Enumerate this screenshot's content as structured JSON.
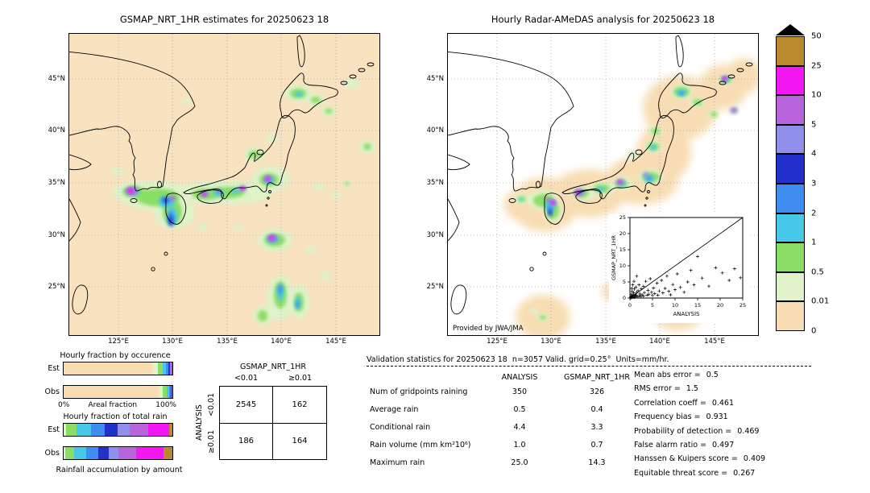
{
  "chart_data": [
    {
      "type": "heatmap",
      "title": "GSMAP_NRT_1HR estimates for 20250623 18",
      "lat_ticks": [
        "45°N",
        "40°N",
        "35°N",
        "30°N",
        "25°N"
      ],
      "lon_ticks": [
        "125°E",
        "130°E",
        "135°E",
        "140°E",
        "145°E"
      ],
      "units": "mm/hr"
    },
    {
      "type": "heatmap",
      "title": "Hourly Radar-AMeDAS analysis for 20250623 18",
      "credit": "Provided by JWA/JMA",
      "lat_ticks": [
        "45°N",
        "40°N",
        "35°N",
        "30°N",
        "25°N"
      ],
      "lon_ticks": [
        "125°E",
        "130°E",
        "135°E",
        "140°E",
        "145°E"
      ],
      "units": "mm/hr"
    },
    {
      "type": "colorbar",
      "tick_labels": [
        "50",
        "25",
        "10",
        "5",
        "4",
        "3",
        "2",
        "1",
        "0.5",
        "0.01",
        "0"
      ],
      "levels_low_to_high": [
        0,
        0.01,
        0.5,
        1,
        2,
        3,
        4,
        5,
        10,
        25,
        50
      ],
      "colors_low_to_high": [
        "#f8ddb4",
        "#dff2c8",
        "#8ade66",
        "#46c8e8",
        "#3e8ef2",
        "#2230cc",
        "#9090ea",
        "#b964da",
        "#f318f3",
        "#bb8a2e"
      ]
    },
    {
      "type": "bar",
      "title": "Hourly fraction by occurence",
      "rows": [
        "Est",
        "Obs"
      ],
      "axis": {
        "left": "0%",
        "center": "Areal fraction",
        "right": "100%"
      },
      "series": [
        {
          "name": "Est",
          "fractions": [
            0.815,
            0.05,
            0.048,
            0.03,
            0.02,
            0.013,
            0.01,
            0.007,
            0.005,
            0.002
          ]
        },
        {
          "name": "Obs",
          "fractions": [
            0.872,
            0.042,
            0.036,
            0.02,
            0.013,
            0.008,
            0.004,
            0.003,
            0.002,
            0.0
          ]
        }
      ]
    },
    {
      "type": "bar",
      "title": "Hourly fraction of total rain",
      "caption": "Rainfall accumulation by amount",
      "rows": [
        "Est",
        "Obs"
      ],
      "series": [
        {
          "name": "Est",
          "fractions": [
            0.0,
            0.02,
            0.1,
            0.13,
            0.13,
            0.12,
            0.11,
            0.17,
            0.19,
            0.03
          ]
        },
        {
          "name": "Obs",
          "fractions": [
            0.0,
            0.015,
            0.085,
            0.11,
            0.11,
            0.1,
            0.09,
            0.16,
            0.26,
            0.08
          ]
        }
      ]
    },
    {
      "type": "table",
      "col_group": "GSMAP_NRT_1HR",
      "row_group": "ANALYSIS",
      "col_labels": [
        "<0.01",
        "≥0.01"
      ],
      "row_labels": [
        "<0.01",
        "≥0.01"
      ],
      "values": [
        [
          2545,
          162
        ],
        [
          186,
          164
        ]
      ]
    },
    {
      "type": "table",
      "header": "Validation statistics for 20250623 18  n=3057 Valid. grid=0.25°  Units=mm/hr.",
      "columns": [
        "ANALYSIS",
        "GSMAP_NRT_1HR"
      ],
      "rows": [
        {
          "label": "Num of gridpoints raining",
          "values": [
            "350",
            "326"
          ]
        },
        {
          "label": "Average rain",
          "values": [
            "0.5",
            "0.4"
          ]
        },
        {
          "label": "Conditional rain",
          "values": [
            "4.4",
            "3.3"
          ]
        },
        {
          "label": "Rain volume (mm km²10⁶)",
          "values": [
            "1.0",
            "0.7"
          ]
        },
        {
          "label": "Maximum rain",
          "values": [
            "25.0",
            "14.3"
          ]
        }
      ],
      "metrics": [
        {
          "label": "Mean abs error =",
          "value": "0.5"
        },
        {
          "label": "RMS error =",
          "value": "1.5"
        },
        {
          "label": "Correlation coeff =",
          "value": "0.461"
        },
        {
          "label": "Frequency bias =",
          "value": "0.931"
        },
        {
          "label": "Probability of detection =",
          "value": "0.469"
        },
        {
          "label": "False alarm ratio =",
          "value": "0.497"
        },
        {
          "label": "Hanssen & Kuipers score =",
          "value": "0.409"
        },
        {
          "label": "Equitable threat score =",
          "value": "0.267"
        }
      ]
    },
    {
      "type": "scatter",
      "xlabel": "ANALYSIS",
      "ylabel": "GSMAP_NRT_1HR",
      "x_ticks": [
        "0",
        "5",
        "10",
        "15",
        "20",
        "25"
      ],
      "y_ticks": [
        "0",
        "5",
        "10",
        "15",
        "20",
        "25"
      ],
      "xlim": [
        0,
        25
      ],
      "ylim": [
        0,
        25
      ],
      "points": [
        [
          0.1,
          0.1
        ],
        [
          0.2,
          0.4
        ],
        [
          0.3,
          0.1
        ],
        [
          0.3,
          1.2
        ],
        [
          0.4,
          0.7
        ],
        [
          0.4,
          3.0
        ],
        [
          0.5,
          0.2
        ],
        [
          0.5,
          2.1
        ],
        [
          0.6,
          0.9
        ],
        [
          0.6,
          4.1
        ],
        [
          0.7,
          0.3
        ],
        [
          0.8,
          1.6
        ],
        [
          0.9,
          0.5
        ],
        [
          0.9,
          5.2
        ],
        [
          1.0,
          0.2
        ],
        [
          1.0,
          2.8
        ],
        [
          1.1,
          1.1
        ],
        [
          1.2,
          0.6
        ],
        [
          1.3,
          3.4
        ],
        [
          1.4,
          0.9
        ],
        [
          1.5,
          1.8
        ],
        [
          1.5,
          6.8
        ],
        [
          1.6,
          0.4
        ],
        [
          1.8,
          2.3
        ],
        [
          2.0,
          0.7
        ],
        [
          2.0,
          4.1
        ],
        [
          2.2,
          1.3
        ],
        [
          2.4,
          0.5
        ],
        [
          2.5,
          2.9
        ],
        [
          2.7,
          1.0
        ],
        [
          3.0,
          0.6
        ],
        [
          3.0,
          3.6
        ],
        [
          3.2,
          1.7
        ],
        [
          3.5,
          5.2
        ],
        [
          3.8,
          0.9
        ],
        [
          4.0,
          2.4
        ],
        [
          4.2,
          1.2
        ],
        [
          4.5,
          6.0
        ],
        [
          4.8,
          1.8
        ],
        [
          5.0,
          0.8
        ],
        [
          5.2,
          3.1
        ],
        [
          5.5,
          1.4
        ],
        [
          6.0,
          4.6
        ],
        [
          6.2,
          0.9
        ],
        [
          6.5,
          2.2
        ],
        [
          7.0,
          5.5
        ],
        [
          7.3,
          1.6
        ],
        [
          7.8,
          3.0
        ],
        [
          8.2,
          6.8
        ],
        [
          8.6,
          2.1
        ],
        [
          9.0,
          1.0
        ],
        [
          9.5,
          4.2
        ],
        [
          10.0,
          2.6
        ],
        [
          10.5,
          7.5
        ],
        [
          11.2,
          3.3
        ],
        [
          12.0,
          1.8
        ],
        [
          12.8,
          5.0
        ],
        [
          13.5,
          8.6
        ],
        [
          14.2,
          4.1
        ],
        [
          15.0,
          12.9
        ],
        [
          16.0,
          6.2
        ],
        [
          17.5,
          3.7
        ],
        [
          19.0,
          9.4
        ],
        [
          20.5,
          7.8
        ],
        [
          22.0,
          5.5
        ],
        [
          23.2,
          9.1
        ],
        [
          24.5,
          6.3
        ]
      ]
    }
  ]
}
